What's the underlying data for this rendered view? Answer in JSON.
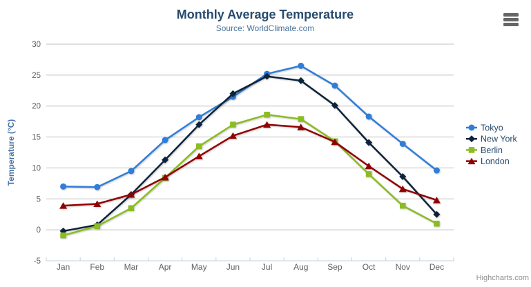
{
  "chart_data": {
    "type": "line",
    "title": "Monthly Average Temperature",
    "subtitle": "Source: WorldClimate.com",
    "xlabel": "",
    "ylabel": "Temperature (°C)",
    "ylim": [
      -5,
      30
    ],
    "y_tick_interval": 5,
    "y_ticks": [
      30,
      25,
      20,
      15,
      10,
      5,
      0,
      -5
    ],
    "grid": true,
    "legend_position": "right",
    "categories": [
      "Jan",
      "Feb",
      "Mar",
      "Apr",
      "May",
      "Jun",
      "Jul",
      "Aug",
      "Sep",
      "Oct",
      "Nov",
      "Dec"
    ],
    "series": [
      {
        "name": "Tokyo",
        "color": "#2f7ed8",
        "marker": "circle",
        "values": [
          7.0,
          6.9,
          9.5,
          14.5,
          18.2,
          21.5,
          25.2,
          26.5,
          23.3,
          18.3,
          13.9,
          9.6
        ]
      },
      {
        "name": "New York",
        "color": "#0d233a",
        "marker": "diamond",
        "values": [
          -0.2,
          0.8,
          5.7,
          11.3,
          17.0,
          22.0,
          24.8,
          24.1,
          20.1,
          14.1,
          8.6,
          2.5
        ]
      },
      {
        "name": "Berlin",
        "color": "#8bbc21",
        "marker": "square",
        "values": [
          -0.9,
          0.6,
          3.5,
          8.4,
          13.5,
          17.0,
          18.6,
          17.9,
          14.3,
          9.0,
          3.9,
          1.0
        ]
      },
      {
        "name": "London",
        "color": "#910000",
        "marker": "triangle",
        "values": [
          3.9,
          4.2,
          5.7,
          8.5,
          11.9,
          15.2,
          17.0,
          16.6,
          14.2,
          10.3,
          6.6,
          4.8
        ]
      }
    ]
  },
  "styles": {
    "title_color": "#274b6d",
    "subtitle_color": "#4d759e",
    "y_axis_title_color": "#4572a7",
    "axis_label_color": "#606060",
    "grid_line_color": "#c0c0c0",
    "axis_line_color": "#c0d0e0",
    "legend_text_color": "#274b6d"
  },
  "credits": {
    "label": "Highcharts.com"
  },
  "export_menu": {
    "tooltip": "Chart context menu"
  }
}
